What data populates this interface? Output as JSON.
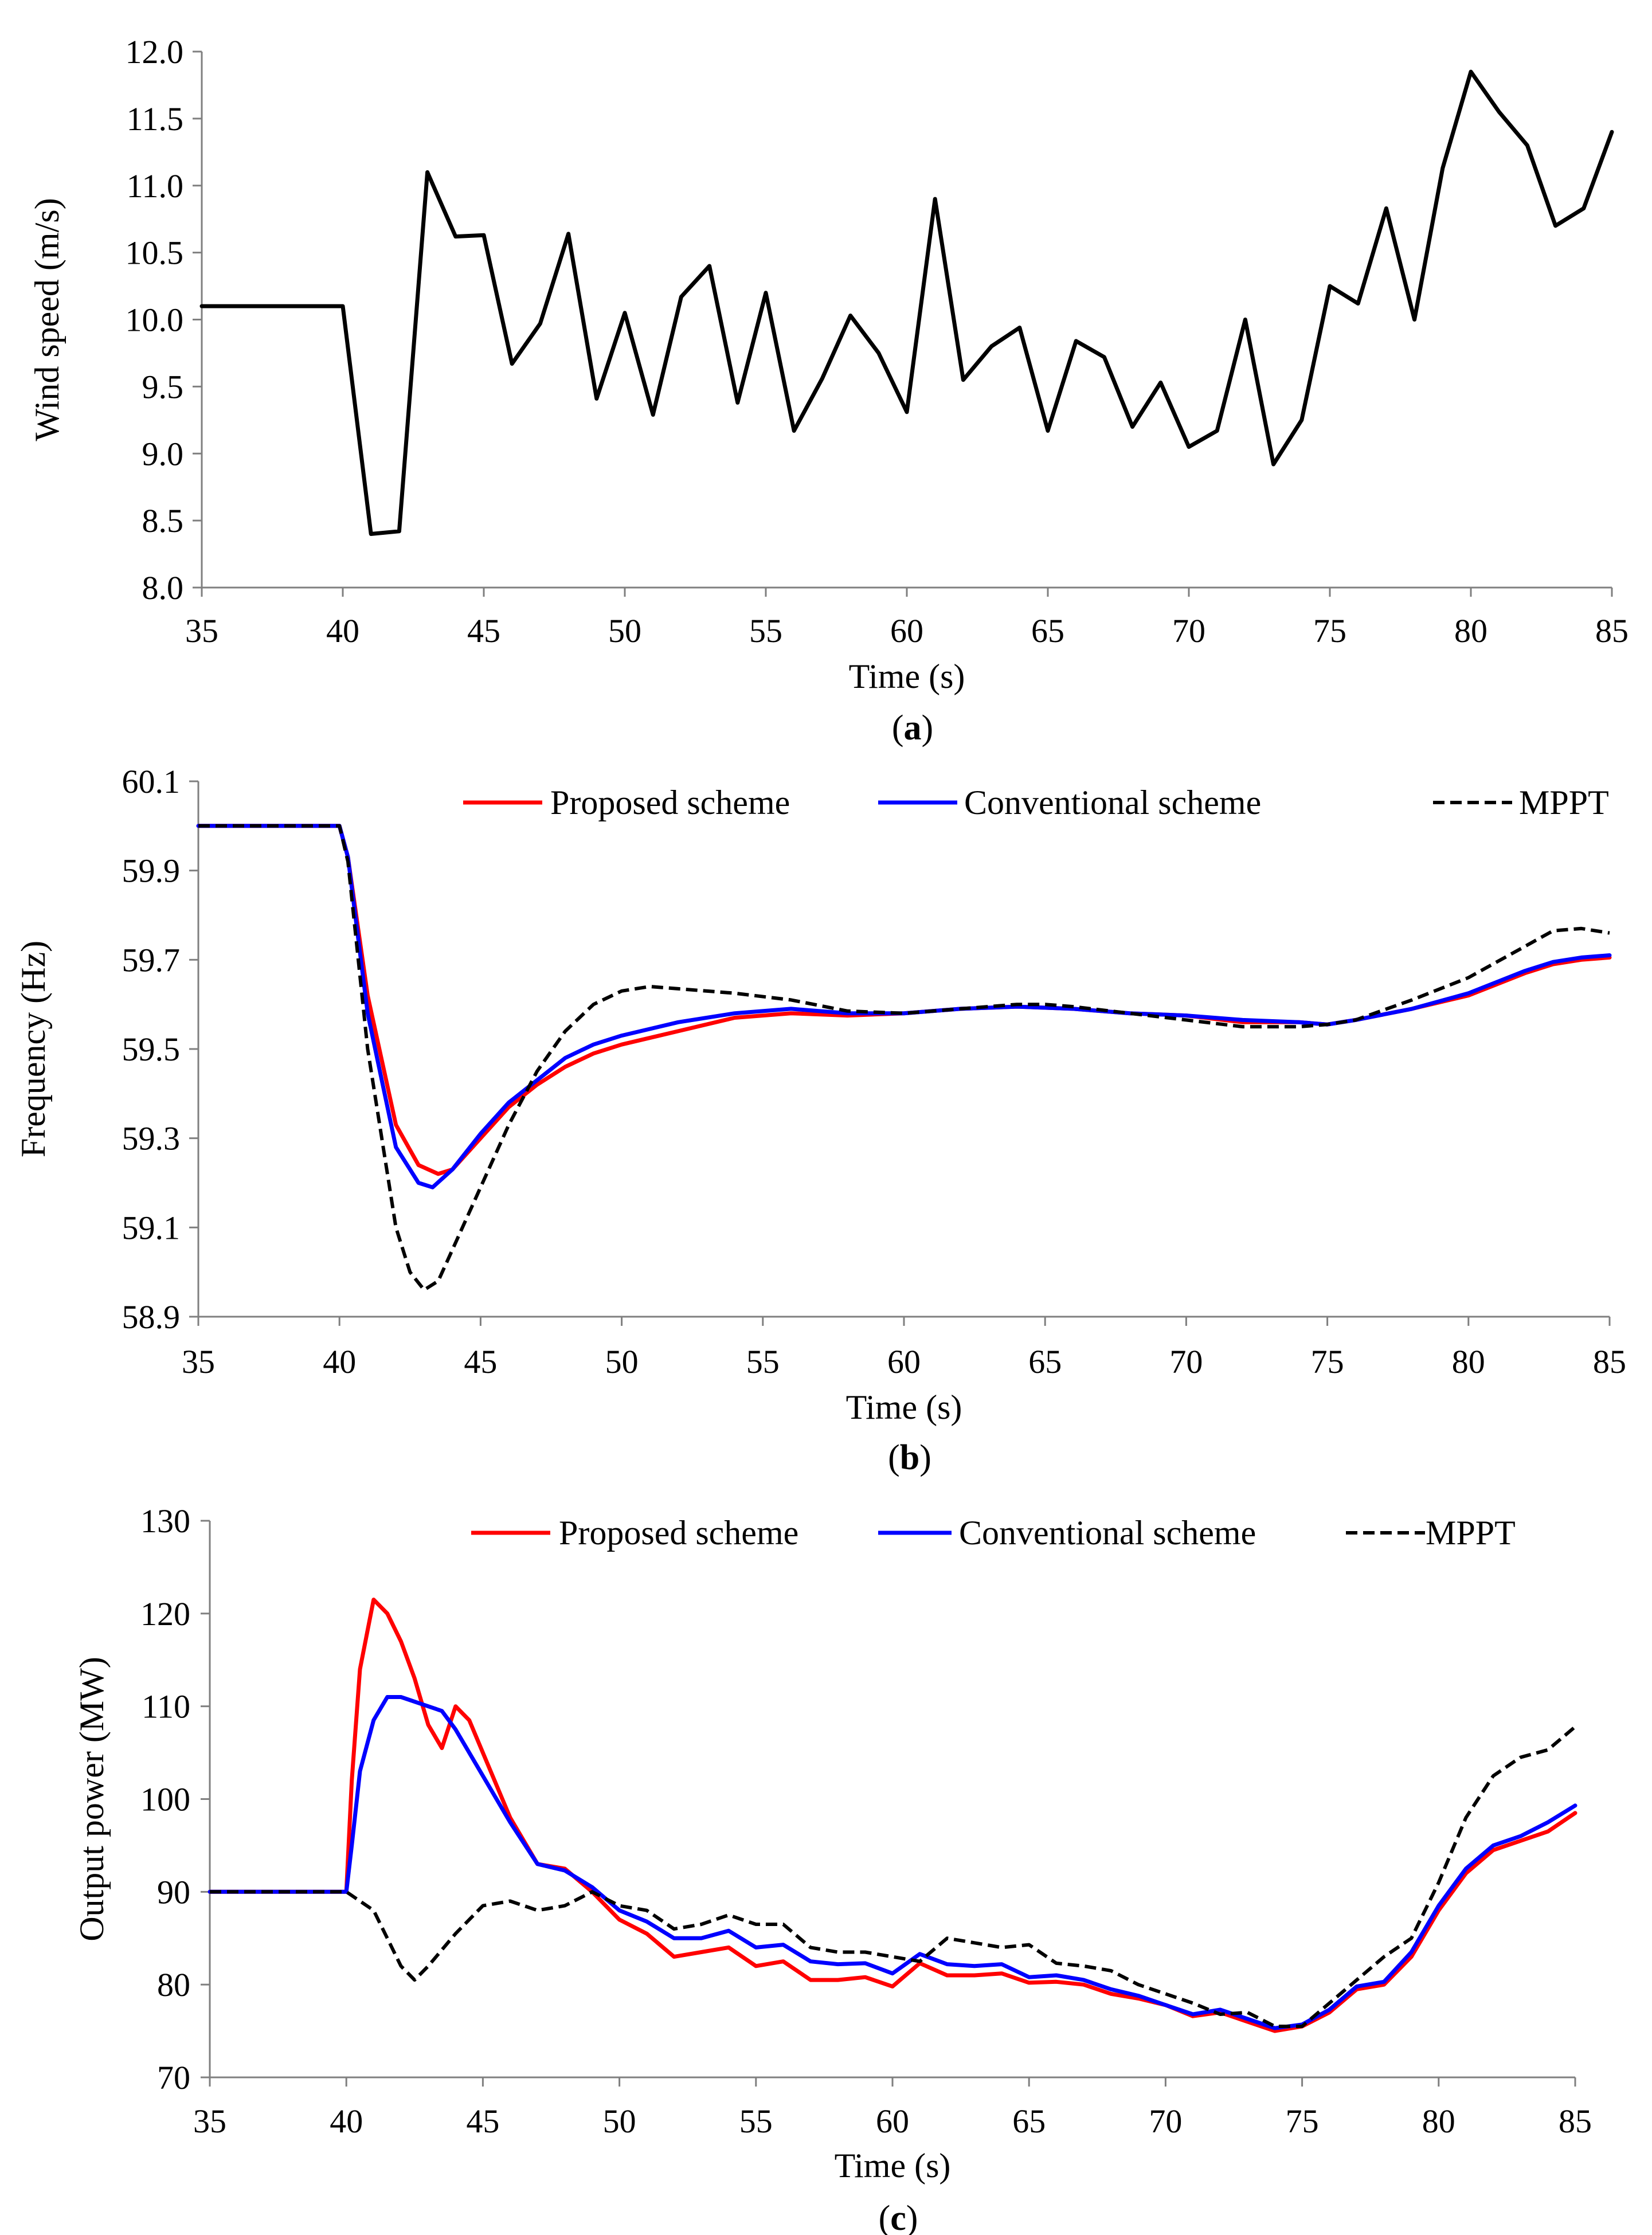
{
  "chart_data": [
    {
      "type": "line",
      "panel_label_open": "(",
      "panel_label_letter": "a",
      "panel_label_close": ")",
      "xlabel": "Time (s)",
      "ylabel": "Wind speed (m/s)",
      "xlim": [
        35,
        85
      ],
      "ylim": [
        8.0,
        12.0
      ],
      "xticks": [
        "35",
        "40",
        "45",
        "50",
        "55",
        "60",
        "65",
        "70",
        "75",
        "80",
        "85"
      ],
      "yticks": [
        "8.0",
        "8.5",
        "9.0",
        "9.5",
        "10.0",
        "10.5",
        "11.0",
        "11.5",
        "12.0"
      ],
      "grid": false,
      "series": [
        {
          "name": "Wind speed",
          "color": "#000000",
          "dash": "solid",
          "x": [
            35,
            40,
            41,
            42,
            43,
            44,
            45,
            46,
            47,
            48,
            49,
            50,
            51,
            52,
            53,
            54,
            55,
            56,
            57,
            58,
            59,
            60,
            61,
            62,
            63,
            64,
            65,
            66,
            67,
            68,
            69,
            70,
            71,
            72,
            73,
            74,
            75,
            76,
            77,
            78,
            79,
            80,
            81,
            82,
            83,
            84,
            85
          ],
          "y": [
            10.1,
            10.1,
            8.4,
            8.42,
            11.1,
            10.62,
            10.63,
            9.67,
            9.97,
            10.64,
            9.41,
            10.05,
            9.29,
            10.17,
            10.4,
            9.38,
            10.2,
            9.17,
            9.56,
            10.03,
            9.75,
            9.31,
            10.9,
            9.55,
            9.8,
            9.94,
            9.17,
            9.84,
            9.72,
            9.2,
            9.53,
            9.05,
            9.17,
            10.0,
            8.92,
            9.25,
            10.25,
            10.12,
            10.83,
            10.0,
            11.13,
            11.85,
            11.55,
            11.3,
            10.7,
            10.83,
            11.4
          ]
        }
      ]
    },
    {
      "type": "line",
      "panel_label_open": "(",
      "panel_label_letter": "b",
      "panel_label_close": ")",
      "xlabel": "Time (s)",
      "ylabel": "Frequency (Hz)",
      "xlim": [
        35,
        85
      ],
      "ylim": [
        58.9,
        60.1
      ],
      "xticks": [
        "35",
        "40",
        "45",
        "50",
        "55",
        "60",
        "65",
        "70",
        "75",
        "80",
        "85"
      ],
      "yticks": [
        "58.9",
        "59.1",
        "59.3",
        "59.5",
        "59.7",
        "59.9",
        "60.1"
      ],
      "grid": false,
      "legend": "top",
      "series": [
        {
          "name": "Proposed scheme",
          "color": "#ff0000",
          "dash": "solid",
          "x": [
            35,
            40,
            40.3,
            41,
            42,
            42.8,
            43.5,
            44,
            45,
            46,
            47,
            48,
            49,
            50,
            52,
            54,
            56,
            58,
            60,
            62,
            64,
            66,
            68,
            70,
            72,
            74,
            75,
            76,
            78,
            80,
            82,
            83,
            84,
            85
          ],
          "y": [
            60.0,
            60.0,
            59.93,
            59.62,
            59.33,
            59.24,
            59.22,
            59.23,
            59.3,
            59.37,
            59.42,
            59.46,
            59.49,
            59.51,
            59.54,
            59.57,
            59.58,
            59.575,
            59.58,
            59.59,
            59.595,
            59.59,
            59.58,
            59.575,
            59.56,
            59.56,
            59.555,
            59.565,
            59.59,
            59.62,
            59.67,
            59.69,
            59.7,
            59.705
          ]
        },
        {
          "name": "Conventional scheme",
          "color": "#0000ff",
          "dash": "solid",
          "x": [
            35,
            40,
            40.3,
            41,
            42,
            42.8,
            43.3,
            44,
            45,
            46,
            47,
            48,
            49,
            50,
            52,
            54,
            56,
            58,
            60,
            62,
            64,
            66,
            68,
            70,
            72,
            74,
            75,
            76,
            78,
            80,
            82,
            83,
            84,
            85
          ],
          "y": [
            60.0,
            60.0,
            59.93,
            59.58,
            59.28,
            59.2,
            59.19,
            59.23,
            59.31,
            59.38,
            59.43,
            59.48,
            59.51,
            59.53,
            59.56,
            59.58,
            59.59,
            59.58,
            59.58,
            59.59,
            59.595,
            59.59,
            59.58,
            59.575,
            59.565,
            59.56,
            59.555,
            59.565,
            59.59,
            59.625,
            59.675,
            59.695,
            59.705,
            59.71
          ]
        },
        {
          "name": "MPPT",
          "color": "#000000",
          "dash": "dashed",
          "x": [
            35,
            40,
            40.3,
            41,
            42,
            42.5,
            43,
            43.5,
            44,
            45,
            46,
            47,
            48,
            49,
            50,
            51,
            52,
            54,
            56,
            58,
            60,
            62,
            64,
            65,
            66,
            68,
            70,
            72,
            74,
            75,
            76,
            78,
            80,
            82,
            83,
            84,
            85
          ],
          "y": [
            60.0,
            60.0,
            59.92,
            59.5,
            59.1,
            59.0,
            58.96,
            58.98,
            59.05,
            59.19,
            59.33,
            59.45,
            59.54,
            59.6,
            59.63,
            59.64,
            59.635,
            59.625,
            59.61,
            59.585,
            59.58,
            59.59,
            59.6,
            59.6,
            59.595,
            59.58,
            59.565,
            59.55,
            59.55,
            59.555,
            59.565,
            59.61,
            59.66,
            59.73,
            59.765,
            59.77,
            59.76
          ]
        }
      ]
    },
    {
      "type": "line",
      "panel_label_open": "(",
      "panel_label_letter": "c",
      "panel_label_close": ")",
      "xlabel": "Time (s)",
      "ylabel": "Output power (MW)",
      "xlim": [
        35,
        85
      ],
      "ylim": [
        70,
        130
      ],
      "xticks": [
        "35",
        "40",
        "45",
        "50",
        "55",
        "60",
        "65",
        "70",
        "75",
        "80",
        "85"
      ],
      "yticks": [
        "70",
        "80",
        "90",
        "100",
        "110",
        "120",
        "130"
      ],
      "grid": false,
      "legend": "top",
      "series": [
        {
          "name": "Proposed scheme",
          "color": "#ff0000",
          "dash": "solid",
          "x": [
            35,
            40,
            40.2,
            40.5,
            41,
            41.5,
            42,
            42.5,
            43,
            43.5,
            44,
            44.5,
            45,
            46,
            47,
            48,
            49,
            50,
            51,
            52,
            53,
            54,
            55,
            56,
            57,
            58,
            59,
            60,
            61,
            62,
            63,
            64,
            65,
            66,
            67,
            68,
            69,
            70,
            71,
            72,
            73,
            74,
            75,
            76,
            77,
            78,
            79,
            80,
            81,
            82,
            83,
            84,
            85
          ],
          "y": [
            90,
            90,
            102,
            114,
            121.5,
            120,
            117,
            113,
            108,
            105.5,
            110,
            108.5,
            105,
            98,
            93,
            92.5,
            90,
            87,
            85.5,
            83,
            83.5,
            84,
            82,
            82.5,
            80.5,
            80.5,
            80.8,
            79.8,
            82.3,
            81,
            81,
            81.2,
            80.2,
            80.3,
            80,
            79,
            78.5,
            77.8,
            76.6,
            77,
            76,
            75,
            75.5,
            77,
            79.5,
            80,
            83,
            88,
            92,
            94.5,
            95.5,
            96.5,
            98.5
          ]
        },
        {
          "name": "Conventional scheme",
          "color": "#0000ff",
          "dash": "solid",
          "x": [
            35,
            40,
            40.2,
            40.5,
            41,
            41.5,
            42,
            43,
            43.5,
            44,
            45,
            46,
            47,
            48,
            49,
            50,
            51,
            52,
            53,
            54,
            55,
            56,
            57,
            58,
            59,
            60,
            61,
            62,
            63,
            64,
            65,
            66,
            67,
            68,
            69,
            70,
            71,
            72,
            73,
            74,
            75,
            76,
            77,
            78,
            79,
            80,
            81,
            82,
            83,
            84,
            85
          ],
          "y": [
            90,
            90,
            95,
            103,
            108.5,
            111,
            111,
            110,
            109.5,
            107.5,
            102.5,
            97.5,
            93,
            92.3,
            90.5,
            88,
            86.8,
            85,
            85,
            85.8,
            84,
            84.3,
            82.5,
            82.2,
            82.3,
            81.2,
            83.3,
            82.2,
            82,
            82.2,
            80.8,
            81,
            80.5,
            79.5,
            78.8,
            77.8,
            76.8,
            77.3,
            76.3,
            75.3,
            75.7,
            77.3,
            79.8,
            80.3,
            83.5,
            88.5,
            92.5,
            95,
            96,
            97.5,
            99.3
          ]
        },
        {
          "name": "MPPT",
          "color": "#000000",
          "dash": "dashed",
          "x": [
            35,
            40,
            41,
            42,
            42.5,
            43,
            44,
            45,
            46,
            47,
            48,
            49,
            50,
            51,
            52,
            53,
            54,
            55,
            56,
            57,
            58,
            59,
            60,
            61,
            62,
            63,
            64,
            65,
            66,
            67,
            68,
            69,
            70,
            71,
            72,
            73,
            74,
            75,
            76,
            77,
            78,
            79,
            80,
            81,
            82,
            83,
            84,
            85
          ],
          "y": [
            90,
            90,
            88,
            82,
            80.5,
            82,
            85.5,
            88.5,
            89,
            88,
            88.5,
            90,
            88.5,
            88,
            86,
            86.5,
            87.5,
            86.5,
            86.5,
            84,
            83.5,
            83.5,
            83,
            82.5,
            85,
            84.5,
            84,
            84.3,
            82.3,
            82,
            81.5,
            80,
            79,
            78,
            76.8,
            77,
            75.5,
            75.5,
            78,
            80.5,
            83,
            85,
            91,
            98,
            102.5,
            104.5,
            105.3,
            107.8
          ]
        }
      ]
    }
  ]
}
